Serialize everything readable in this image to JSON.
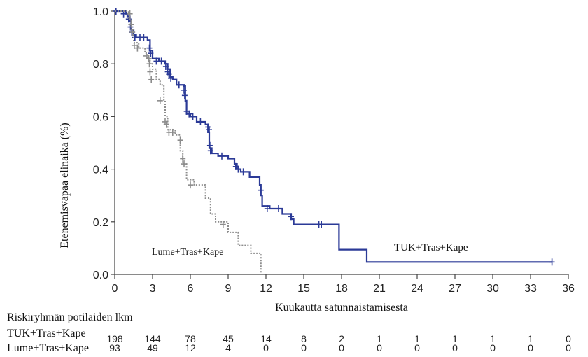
{
  "chart_data": {
    "type": "line",
    "subtype": "kaplan-meier",
    "title": "",
    "xlabel": "Kuukautta satunnaistamisesta",
    "ylabel": "Etenemisvapaa elinaika (%)",
    "xlim": [
      0,
      36
    ],
    "ylim": [
      0,
      1.0
    ],
    "xticks": [
      0,
      3,
      6,
      9,
      12,
      15,
      18,
      21,
      24,
      27,
      30,
      33,
      36
    ],
    "yticks": [
      0.0,
      0.2,
      0.4,
      0.6,
      0.8,
      1.0
    ],
    "ytick_labels": [
      "0.0",
      "0.2",
      "0.4",
      "0.6",
      "0.8",
      "1.0"
    ],
    "grid": false,
    "series": [
      {
        "name": "TUK+Tras+Kape",
        "color": "#2b3a97",
        "style": "solid",
        "label_position": "right, near 0.12",
        "steps": [
          [
            0,
            1.0
          ],
          [
            0.9,
            0.99
          ],
          [
            1.0,
            0.98
          ],
          [
            1.2,
            0.96
          ],
          [
            1.3,
            0.93
          ],
          [
            1.5,
            0.91
          ],
          [
            1.7,
            0.9
          ],
          [
            2.6,
            0.89
          ],
          [
            2.8,
            0.85
          ],
          [
            3.0,
            0.82
          ],
          [
            3.5,
            0.81
          ],
          [
            4.0,
            0.8
          ],
          [
            4.2,
            0.78
          ],
          [
            4.4,
            0.75
          ],
          [
            4.6,
            0.74
          ],
          [
            4.9,
            0.72
          ],
          [
            5.5,
            0.715
          ],
          [
            5.6,
            0.66
          ],
          [
            5.7,
            0.61
          ],
          [
            6.0,
            0.6
          ],
          [
            6.5,
            0.58
          ],
          [
            7.2,
            0.57
          ],
          [
            7.4,
            0.54
          ],
          [
            7.5,
            0.48
          ],
          [
            7.7,
            0.46
          ],
          [
            8.2,
            0.45
          ],
          [
            9.0,
            0.44
          ],
          [
            9.5,
            0.42
          ],
          [
            9.7,
            0.4
          ],
          [
            10.0,
            0.39
          ],
          [
            10.7,
            0.37
          ],
          [
            11.5,
            0.34
          ],
          [
            11.6,
            0.3
          ],
          [
            11.7,
            0.26
          ],
          [
            12.3,
            0.25
          ],
          [
            13.3,
            0.23
          ],
          [
            14.0,
            0.21
          ],
          [
            14.2,
            0.19
          ],
          [
            17.8,
            0.094
          ],
          [
            20.0,
            0.047
          ],
          [
            34.7,
            0.047
          ]
        ],
        "censored": [
          [
            0.1,
            1.0
          ],
          [
            0.7,
            0.99
          ],
          [
            1.1,
            0.97
          ],
          [
            1.25,
            0.94
          ],
          [
            1.35,
            0.92
          ],
          [
            1.6,
            0.9
          ],
          [
            2.0,
            0.9
          ],
          [
            2.3,
            0.9
          ],
          [
            2.75,
            0.86
          ],
          [
            2.85,
            0.84
          ],
          [
            3.3,
            0.81
          ],
          [
            3.7,
            0.81
          ],
          [
            4.05,
            0.79
          ],
          [
            4.2,
            0.77
          ],
          [
            4.3,
            0.76
          ],
          [
            4.45,
            0.745
          ],
          [
            5.1,
            0.72
          ],
          [
            5.5,
            0.7
          ],
          [
            5.55,
            0.68
          ],
          [
            5.7,
            0.62
          ],
          [
            5.9,
            0.61
          ],
          [
            6.2,
            0.6
          ],
          [
            6.8,
            0.58
          ],
          [
            7.4,
            0.56
          ],
          [
            7.5,
            0.55
          ],
          [
            7.55,
            0.49
          ],
          [
            7.6,
            0.47
          ],
          [
            8.5,
            0.45
          ],
          [
            9.6,
            0.41
          ],
          [
            9.8,
            0.4
          ],
          [
            10.2,
            0.39
          ],
          [
            11.6,
            0.32
          ],
          [
            12.1,
            0.25
          ],
          [
            13.0,
            0.25
          ],
          [
            14.0,
            0.22
          ],
          [
            16.2,
            0.19
          ],
          [
            16.4,
            0.19
          ],
          [
            34.7,
            0.047
          ]
        ]
      },
      {
        "name": "Lume+Tras+Kape",
        "color": "#8c8c8c",
        "style": "dotted",
        "label_position": "lower-left, near 0.09",
        "steps": [
          [
            0,
            1.0
          ],
          [
            1.1,
            0.97
          ],
          [
            1.3,
            0.93
          ],
          [
            1.5,
            0.88
          ],
          [
            1.9,
            0.86
          ],
          [
            2.4,
            0.84
          ],
          [
            2.6,
            0.82
          ],
          [
            2.8,
            0.8
          ],
          [
            3.0,
            0.78
          ],
          [
            3.3,
            0.74
          ],
          [
            3.6,
            0.72
          ],
          [
            3.9,
            0.66
          ],
          [
            4.0,
            0.6
          ],
          [
            4.2,
            0.55
          ],
          [
            4.8,
            0.53
          ],
          [
            5.2,
            0.47
          ],
          [
            5.4,
            0.42
          ],
          [
            5.7,
            0.36
          ],
          [
            6.3,
            0.34
          ],
          [
            7.2,
            0.29
          ],
          [
            7.6,
            0.23
          ],
          [
            8.0,
            0.2
          ],
          [
            9.0,
            0.16
          ],
          [
            9.8,
            0.11
          ],
          [
            10.8,
            0.08
          ],
          [
            11.6,
            0.0
          ]
        ],
        "censored": [
          [
            1.2,
            0.99
          ],
          [
            1.3,
            0.95
          ],
          [
            1.4,
            0.92
          ],
          [
            1.55,
            0.87
          ],
          [
            1.8,
            0.86
          ],
          [
            2.5,
            0.83
          ],
          [
            2.7,
            0.82
          ],
          [
            2.75,
            0.8
          ],
          [
            2.8,
            0.77
          ],
          [
            2.9,
            0.74
          ],
          [
            3.6,
            0.66
          ],
          [
            4.0,
            0.58
          ],
          [
            4.1,
            0.57
          ],
          [
            4.3,
            0.54
          ],
          [
            4.6,
            0.54
          ],
          [
            5.2,
            0.51
          ],
          [
            5.4,
            0.44
          ],
          [
            5.5,
            0.42
          ],
          [
            6.0,
            0.34
          ],
          [
            8.6,
            0.19
          ]
        ]
      }
    ],
    "annotations": [
      {
        "text": "TUK+Tras+Kape",
        "x": 24.5,
        "y": 0.105
      },
      {
        "text": "Lume+Tras+Kape",
        "x": 6.2,
        "y": 0.085
      }
    ],
    "risk_table": {
      "title": "Riskiryhmän potilaiden lkm",
      "times": [
        0,
        3,
        6,
        9,
        12,
        15,
        18,
        21,
        24,
        27,
        30,
        33,
        36
      ],
      "rows": [
        {
          "label": "TUK+Tras+Kape",
          "values": [
            198,
            144,
            78,
            45,
            14,
            8,
            2,
            1,
            1,
            1,
            1,
            1,
            0
          ]
        },
        {
          "label": "Lume+Tras+Kape",
          "values": [
            93,
            49,
            12,
            4,
            0,
            0,
            0,
            0,
            0,
            0,
            0,
            0,
            0
          ]
        }
      ]
    }
  }
}
